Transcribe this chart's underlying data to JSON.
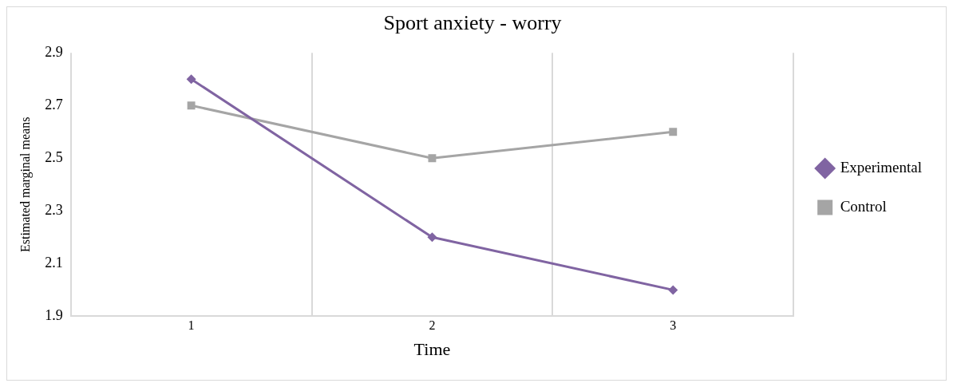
{
  "chart_data": {
    "type": "line",
    "title": "Sport anxiety - worry",
    "xlabel": "Time",
    "ylabel": "Estimated marginal means",
    "categories": [
      "1",
      "2",
      "3"
    ],
    "series": [
      {
        "name": "Experimental",
        "color": "#8064a2",
        "values": [
          2.8,
          2.2,
          2.0
        ],
        "marker": "diamond"
      },
      {
        "name": "Control",
        "color": "#a5a5a5",
        "values": [
          2.7,
          2.5,
          2.6
        ],
        "marker": "square"
      }
    ],
    "ylim": [
      1.9,
      2.9
    ],
    "yticks": [
      1.9,
      2.1,
      2.3,
      2.5,
      2.7,
      2.9
    ],
    "grid": "x",
    "legend": "right",
    "line_style": "solid"
  }
}
